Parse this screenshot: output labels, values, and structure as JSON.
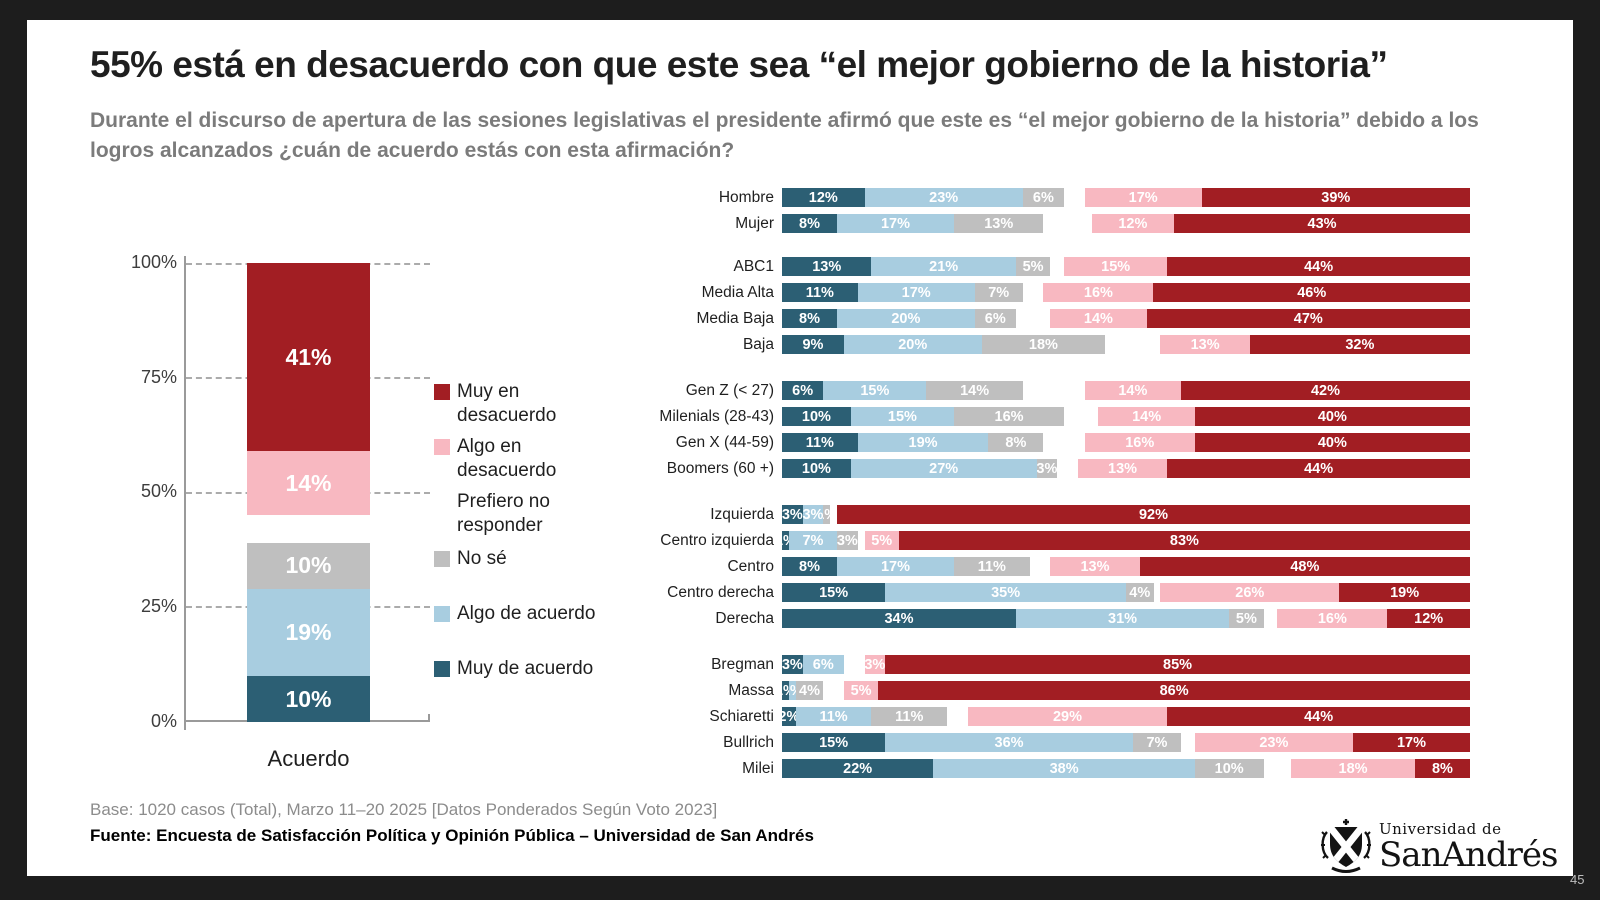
{
  "frame": {
    "page_number": "45"
  },
  "header": {
    "title": "55% está en desacuerdo con que este sea “el mejor gobierno de la historia”",
    "subtitle": "Durante el discurso de apertura de las sesiones legislativas el presidente afirmó que este es “el mejor gobierno de la historia” debido a los logros alcanzados ¿cuán de acuerdo estás con esta afirmación?"
  },
  "colors": {
    "muy_en_desacuerdo": "#A21E23",
    "algo_en_desacuerdo": "#F8B8C1",
    "prefiero_no_responder": "#FFFFFF",
    "no_se": "#BFBFBF",
    "algo_de_acuerdo": "#A8CDE0",
    "muy_de_acuerdo": "#2C5F74",
    "frame": "#1D1D1D"
  },
  "legend": {
    "items": [
      {
        "key": "muy_en_desacuerdo",
        "label": "Muy en\ndesacuerdo",
        "swatch": true
      },
      {
        "key": "algo_en_desacuerdo",
        "label": "Algo en\ndesacuerdo",
        "swatch": true
      },
      {
        "key": "prefiero_no_responder",
        "label": "Prefiero no\nresponder",
        "swatch": false
      },
      {
        "key": "no_se",
        "label": "No sé",
        "swatch": true
      },
      {
        "key": "algo_de_acuerdo",
        "label": "Algo de acuerdo",
        "swatch": true
      },
      {
        "key": "muy_de_acuerdo",
        "label": "Muy de acuerdo",
        "swatch": true
      }
    ]
  },
  "chart_data": [
    {
      "type": "bar",
      "variant": "vertical-stacked",
      "categories": [
        "Acuerdo"
      ],
      "xlabel": "Acuerdo",
      "ylim": [
        0,
        100
      ],
      "yticks": [
        "100%",
        "75%",
        "50%",
        "25%",
        "0%"
      ],
      "grid": "horizontal-dashed",
      "series_bottom_to_top": [
        {
          "name": "Muy de acuerdo",
          "value": 10,
          "label": "10%",
          "color": "#2C5F74"
        },
        {
          "name": "Algo de acuerdo",
          "value": 19,
          "label": "19%",
          "color": "#A8CDE0"
        },
        {
          "name": "No sé",
          "value": 10,
          "label": "10%",
          "color": "#BFBFBF"
        },
        {
          "name": "Prefiero no responder",
          "value": 6,
          "label": "",
          "color": "#FFFFFF"
        },
        {
          "name": "Algo en desacuerdo",
          "value": 14,
          "label": "14%",
          "color": "#F8B8C1"
        },
        {
          "name": "Muy en desacuerdo",
          "value": 41,
          "label": "41%",
          "color": "#A21E23"
        }
      ]
    },
    {
      "type": "bar",
      "variant": "horizontal-stacked",
      "xlim": [
        0,
        100
      ],
      "segment_keys": [
        "Muy de acuerdo",
        "Algo de acuerdo",
        "No sé",
        "Algo en desacuerdo",
        "Muy en desacuerdo"
      ],
      "note": "white gap between No sé and Algo en desacuerdo = Prefiero no responder (100 - sum of values)",
      "groups": [
        {
          "name": "genero",
          "rows": [
            {
              "label": "Hombre",
              "values": [
                12,
                23,
                6,
                17,
                39
              ]
            },
            {
              "label": "Mujer",
              "values": [
                8,
                17,
                13,
                12,
                43
              ]
            }
          ]
        },
        {
          "name": "nivel-socioeconomico",
          "rows": [
            {
              "label": "ABC1",
              "values": [
                13,
                21,
                5,
                15,
                44
              ]
            },
            {
              "label": "Media Alta",
              "values": [
                11,
                17,
                7,
                16,
                46
              ]
            },
            {
              "label": "Media Baja",
              "values": [
                8,
                20,
                6,
                14,
                47
              ]
            },
            {
              "label": "Baja",
              "values": [
                9,
                20,
                18,
                13,
                32
              ]
            }
          ]
        },
        {
          "name": "generacion",
          "rows": [
            {
              "label": "Gen Z (< 27)",
              "values": [
                6,
                15,
                14,
                14,
                42
              ]
            },
            {
              "label": "Milenials (28-43)",
              "values": [
                10,
                15,
                16,
                14,
                40
              ]
            },
            {
              "label": "Gen X (44-59)",
              "values": [
                11,
                19,
                8,
                16,
                40
              ]
            },
            {
              "label": "Boomers (60 +)",
              "values": [
                10,
                27,
                3,
                13,
                44
              ]
            }
          ]
        },
        {
          "name": "ideologia",
          "rows": [
            {
              "label": "Izquierda",
              "values": [
                3,
                3,
                1,
                0,
                92
              ]
            },
            {
              "label": "Centro izquierda",
              "values": [
                1,
                7,
                3,
                5,
                83
              ]
            },
            {
              "label": "Centro",
              "values": [
                8,
                17,
                11,
                13,
                48
              ]
            },
            {
              "label": "Centro derecha",
              "values": [
                15,
                35,
                4,
                26,
                19
              ]
            },
            {
              "label": "Derecha",
              "values": [
                34,
                31,
                5,
                16,
                12
              ]
            }
          ]
        },
        {
          "name": "voto-2023",
          "rows": [
            {
              "label": "Bregman",
              "values": [
                3,
                6,
                0,
                3,
                85
              ]
            },
            {
              "label": "Massa",
              "values": [
                1,
                1,
                4,
                5,
                86
              ]
            },
            {
              "label": "Schiaretti",
              "values": [
                2,
                11,
                11,
                29,
                44
              ]
            },
            {
              "label": "Bullrich",
              "values": [
                15,
                36,
                7,
                23,
                17
              ]
            },
            {
              "label": "Milei",
              "values": [
                22,
                38,
                10,
                18,
                8
              ]
            }
          ]
        }
      ]
    }
  ],
  "footer": {
    "base": "Base: 1020 casos (Total), Marzo 11–20 2025 [Datos Ponderados Según Voto 2023]",
    "source": "Fuente: Encuesta de Satisfacción Política y Opinión Pública – Universidad de San Andrés"
  },
  "logo": {
    "line1": "Universidad de",
    "line2": "SanAndrés"
  }
}
